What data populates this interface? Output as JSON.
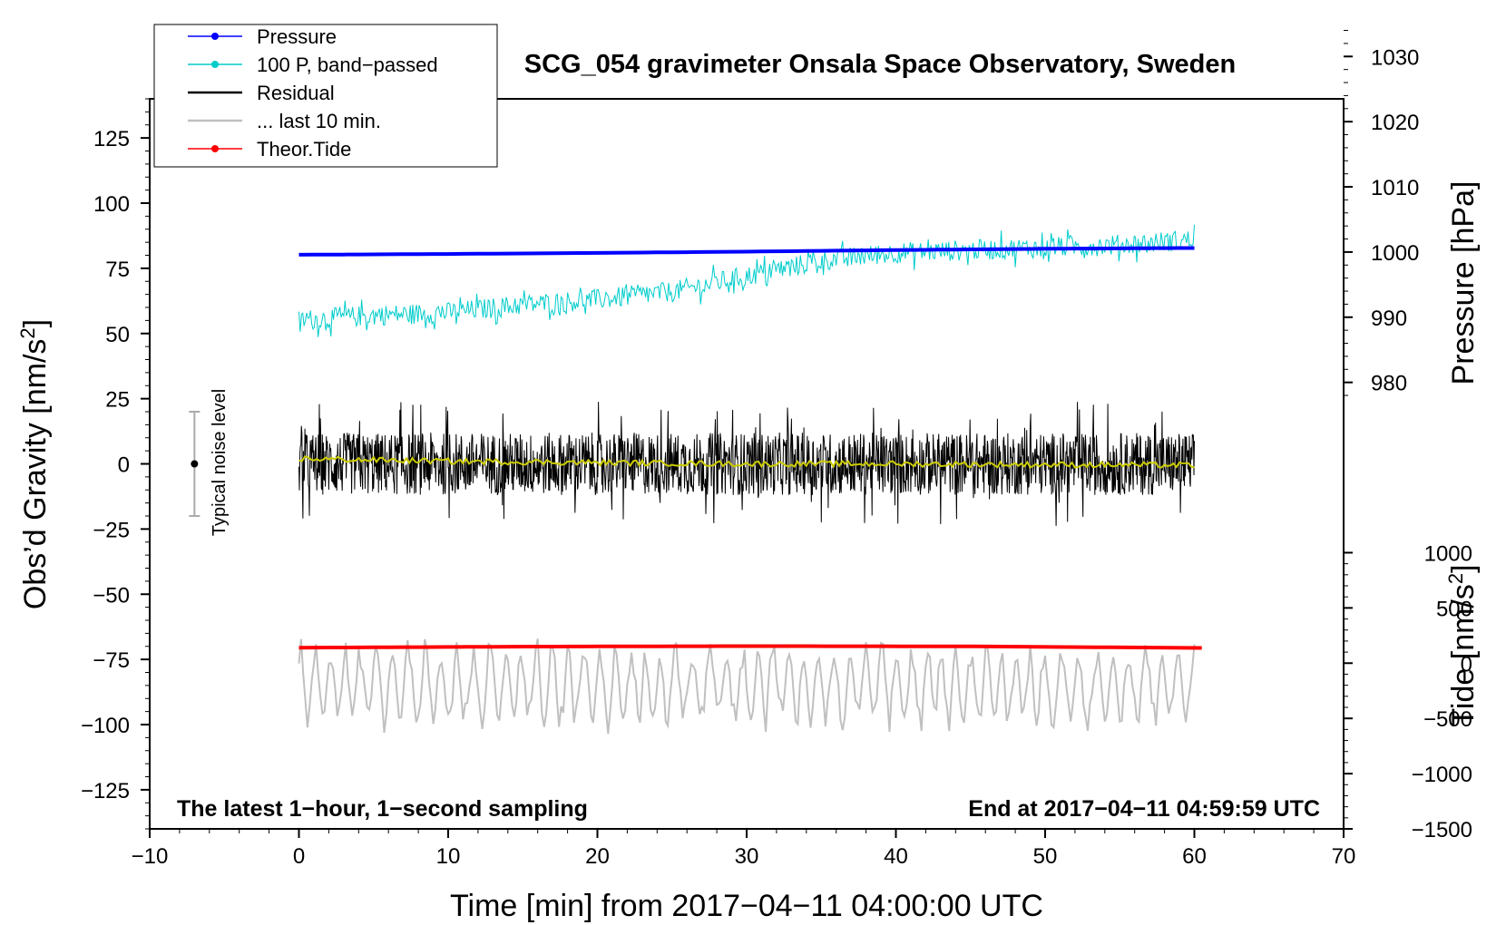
{
  "chart_data": {
    "type": "line",
    "title": "SCG_054 gravimeter Onsala Space Observatory, Sweden",
    "xlabel": "Time [min] from 2017−04−11 04:00:00 UTC",
    "ylabel_left": "Obs’d Gravity [nm/s²]",
    "ylabel_right_pressure": "Pressure [hPa]",
    "ylabel_right_tide": "Tide [nm/s²]",
    "xlim": [
      -10,
      70
    ],
    "ylim": [
      -140,
      140
    ],
    "x_ticks": [
      "−10",
      "0",
      "10",
      "20",
      "30",
      "40",
      "50",
      "60",
      "70"
    ],
    "y_ticks": [
      "125",
      "100",
      "75",
      "50",
      "25",
      "0",
      "−25",
      "−50",
      "−75",
      "−100",
      "−125"
    ],
    "pressure_ticks": [
      "1030",
      "1020",
      "1010",
      "1000",
      "990",
      "980"
    ],
    "tide_ticks": [
      "1000",
      "500",
      "0",
      "−500",
      "−1000",
      "−1500"
    ],
    "pressure_scale": {
      "hpa_at_gravity_0": 967.5,
      "hpa_per_gravity_unit": 0.4
    },
    "tide_scale": {
      "tide_at_gravity_minus_140": -1500,
      "tide_per_gravity_unit": 23.6
    },
    "legend": {
      "position": "top-left",
      "entries": [
        "Pressure",
        "100 P, band−passed",
        "Residual",
        "... last 10 min.",
        "Theor.Tide"
      ]
    },
    "annotations": {
      "left": "The latest 1−hour, 1−second sampling",
      "right": "End at 2017−04−11 04:59:59 UTC",
      "noise_label": "Typical noise level"
    },
    "noise_bar": {
      "x": -7,
      "center": 0,
      "low": -20,
      "high": 20
    },
    "series": [
      {
        "name": "Pressure",
        "color": "#0000ff",
        "x": [
          0,
          10,
          20,
          30,
          40,
          50,
          60
        ],
        "values": [
          80.2,
          80.5,
          80.9,
          81.4,
          82.0,
          82.5,
          82.8
        ]
      },
      {
        "name": "100 P, band−passed",
        "color": "#00cccc",
        "x": [
          0,
          5,
          10,
          15,
          20,
          25,
          30,
          35,
          40,
          45,
          50,
          55,
          60
        ],
        "values": [
          55,
          57,
          58,
          61,
          63,
          66,
          72,
          78,
          81,
          82,
          83,
          84,
          86
        ],
        "noise_amplitude": 4
      },
      {
        "name": "Residual",
        "color": "#000000",
        "x": [
          0,
          60
        ],
        "values": [
          0,
          0
        ],
        "noise_amplitude": 12
      },
      {
        "name": "Residual smoothed",
        "color": "#cccc00",
        "x": [
          0,
          10,
          20,
          30,
          40,
          50,
          60
        ],
        "values": [
          2,
          1,
          0.5,
          0,
          0,
          -0.3,
          -0.5
        ]
      },
      {
        "name": "Theor.Tide",
        "color": "#ff0000",
        "x": [
          0,
          15,
          30,
          45,
          60.5
        ],
        "values": [
          -70.5,
          -70.1,
          -69.9,
          -70.0,
          -70.6
        ]
      },
      {
        "name": "... last 10 min.",
        "color": "#c0c0c0",
        "x": [
          0,
          60
        ],
        "values": [
          -85,
          -85
        ],
        "noise_amplitude": 17
      }
    ],
    "colors": {
      "pressure": "#0000ff",
      "bandpassed": "#00cccc",
      "residual": "#000000",
      "residual_smooth": "#cccc00",
      "tide": "#ff0000",
      "last10": "#c0c0c0"
    }
  }
}
